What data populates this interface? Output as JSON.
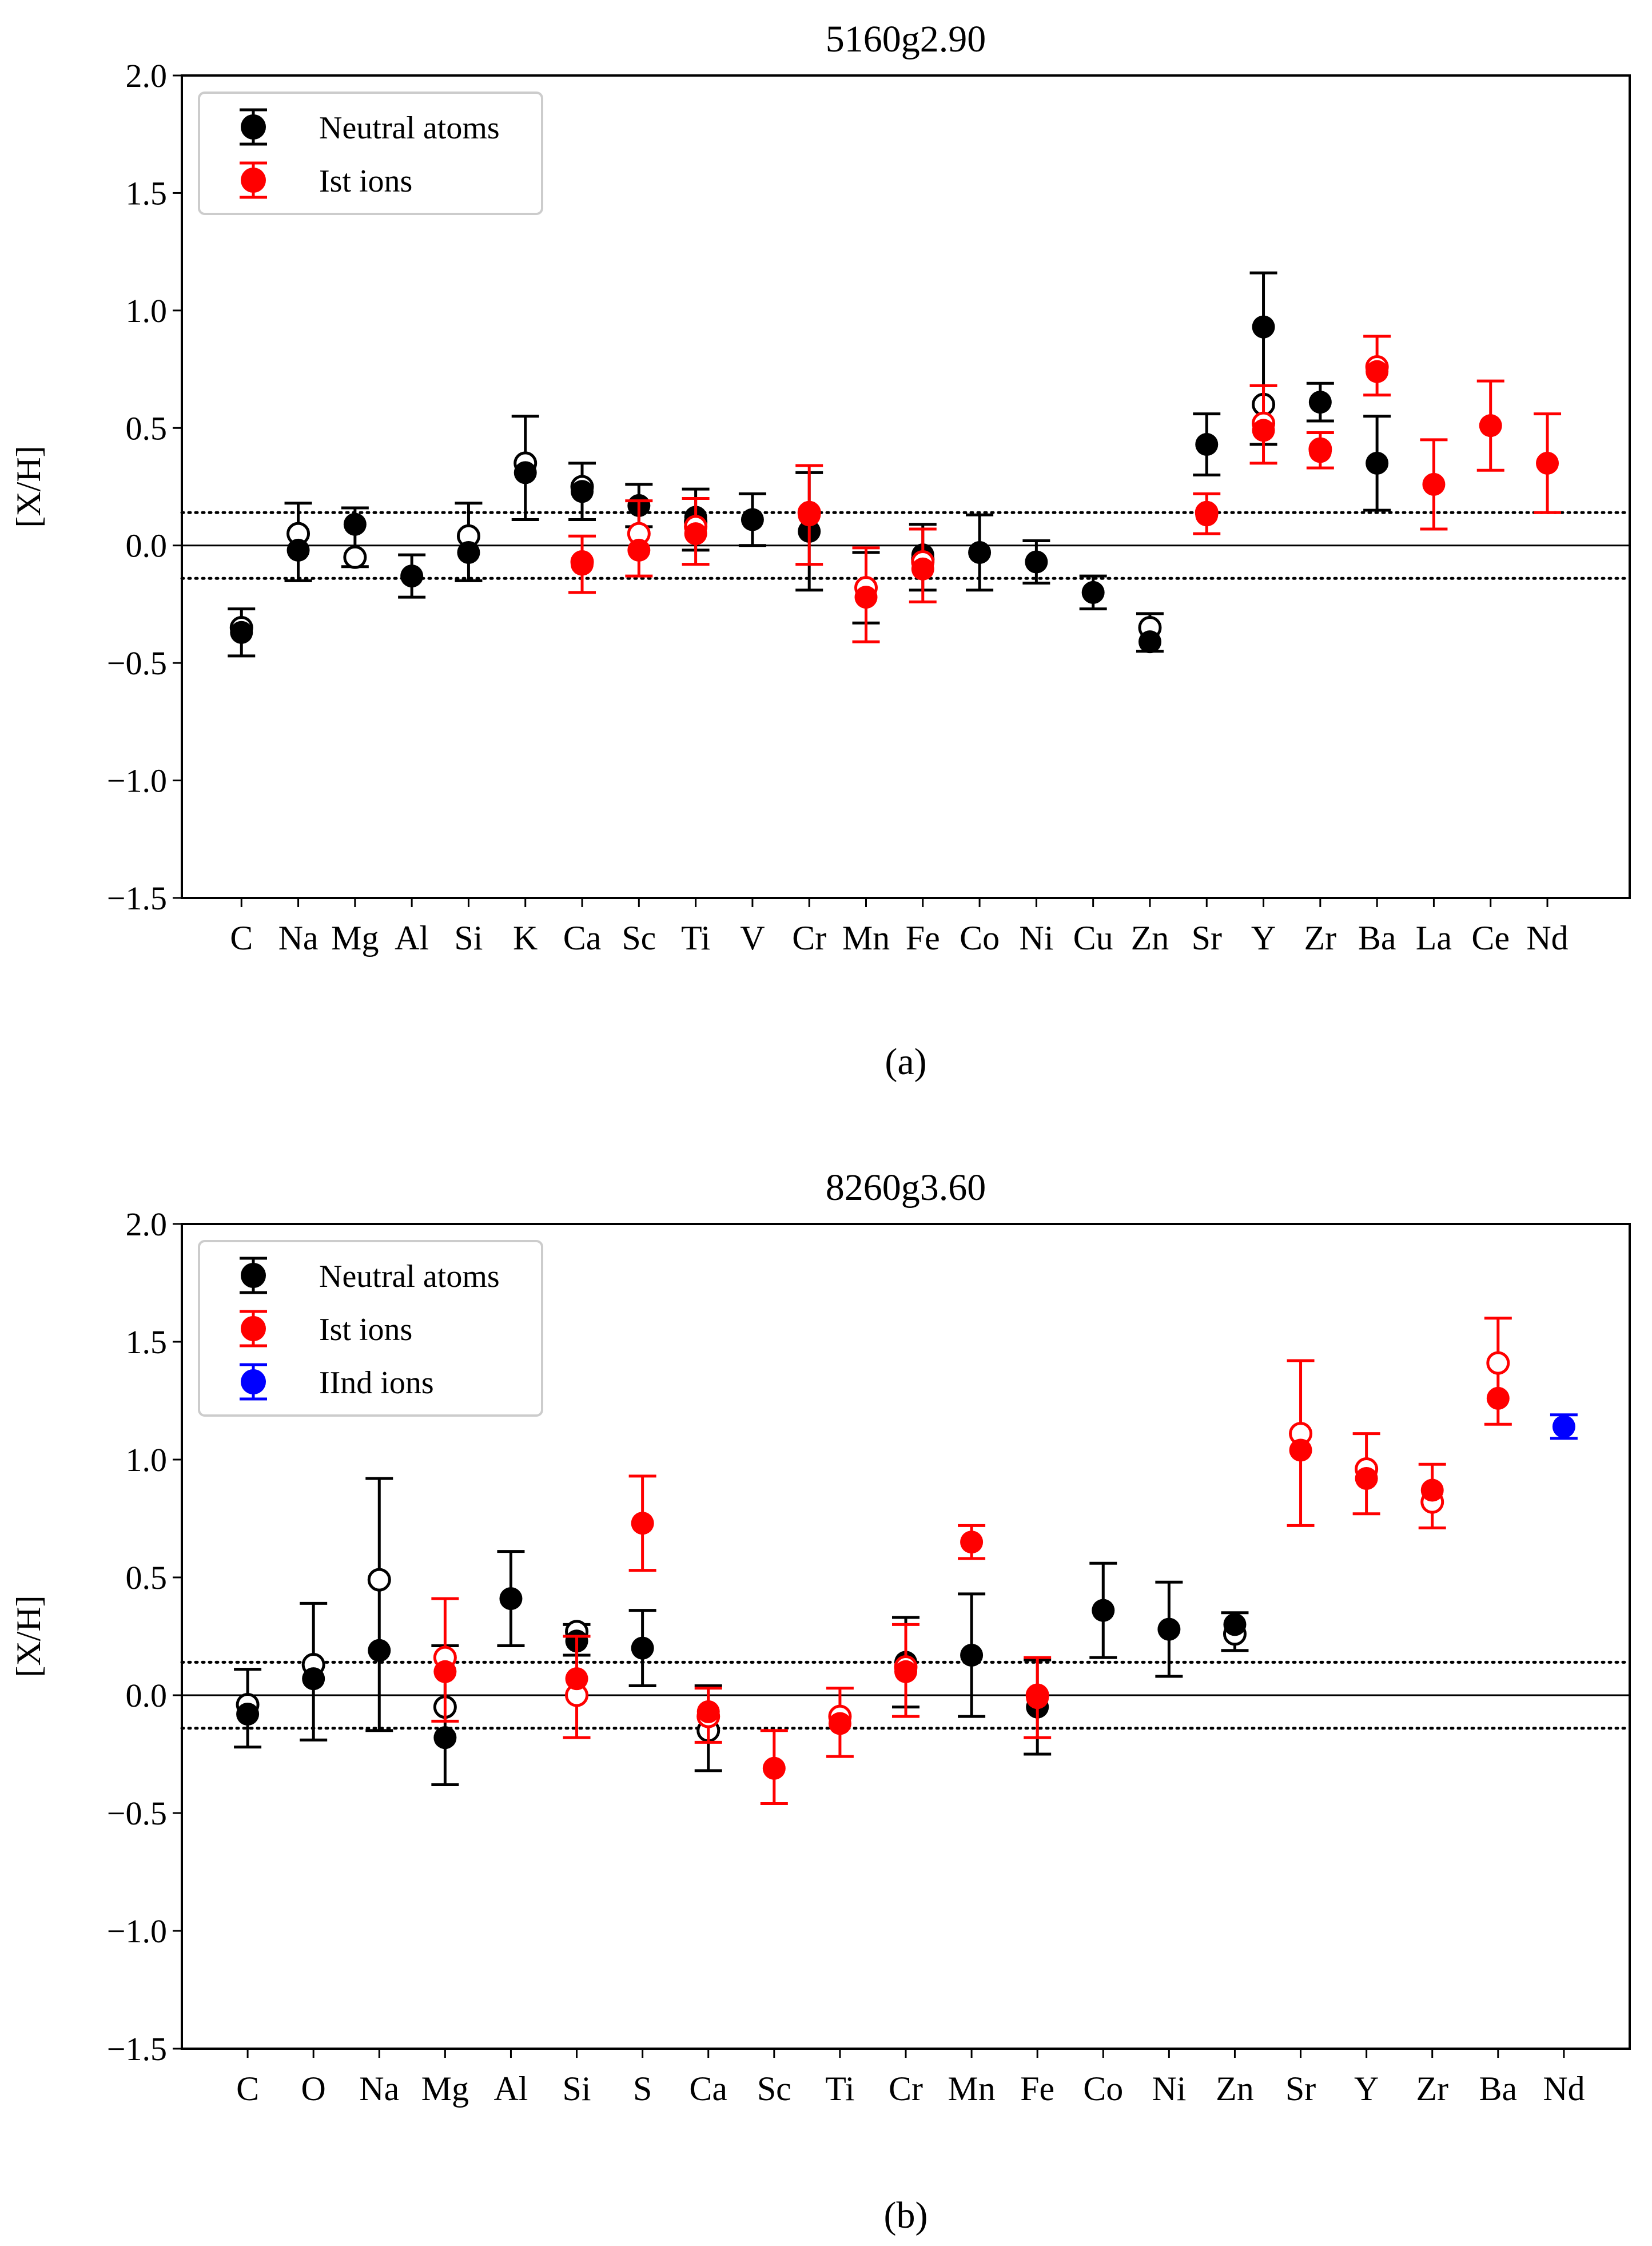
{
  "chart_data": [
    {
      "id": "a",
      "type": "scatter",
      "title": "5160g2.90",
      "ylabel": "[X/H]",
      "xlabel": "",
      "caption": "(a)",
      "ylim": [
        -1.5,
        2.0
      ],
      "yticks": [
        -1.5,
        -1.0,
        -0.5,
        0.0,
        0.5,
        1.0,
        1.5,
        2.0
      ],
      "ytick_labels": [
        "−1.5",
        "−1.0",
        "−0.5",
        "0.0",
        "0.5",
        "1.0",
        "1.5",
        "2.0"
      ],
      "reference_line": 0.0,
      "tolerance_band": [
        -0.14,
        0.14
      ],
      "categories": [
        {
          "label": "C",
          "x": 0.05
        },
        {
          "label": "Na",
          "x": 1.05
        },
        {
          "label": "Mg",
          "x": 2.05
        },
        {
          "label": "Al",
          "x": 3.05
        },
        {
          "label": "Si",
          "x": 4.05
        },
        {
          "label": "K",
          "x": 5.05
        },
        {
          "label": "Ca",
          "x": 6.05
        },
        {
          "label": "Sc",
          "x": 7.05
        },
        {
          "label": "Ti",
          "x": 8.05
        },
        {
          "label": "V",
          "x": 9.05
        },
        {
          "label": "Cr",
          "x": 10.05
        },
        {
          "label": "Mn",
          "x": 11.05
        },
        {
          "label": "Fe",
          "x": 12.05
        },
        {
          "label": "Co",
          "x": 13.05
        },
        {
          "label": "Ni",
          "x": 14.05
        },
        {
          "label": "Cu",
          "x": 15.05
        },
        {
          "label": "Zn",
          "x": 16.05
        },
        {
          "label": "Sr",
          "x": 17.05
        },
        {
          "label": "Y",
          "x": 18.05
        },
        {
          "label": "Zr",
          "x": 19.05
        },
        {
          "label": "Ba",
          "x": 20.05
        },
        {
          "label": "La",
          "x": 21.05
        },
        {
          "label": "Ce",
          "x": 22.05
        },
        {
          "label": "Nd",
          "x": 23.05
        }
      ],
      "xlim": [
        -1,
        24.5
      ],
      "legend": {
        "position": "upper-left",
        "entries": [
          {
            "series": "neutral",
            "label": "Neutral atoms",
            "color": "#000000"
          },
          {
            "series": "ion1",
            "label": "Ist ions",
            "color": "#ff0000"
          }
        ]
      },
      "series": [
        {
          "name": "Neutral atoms",
          "key": "neutral",
          "color": "#000000",
          "points": [
            {
              "x": 0.05,
              "filled": -0.37,
              "open": -0.35,
              "err_low": -0.47,
              "err_high": -0.27
            },
            {
              "x": 1.05,
              "filled": -0.02,
              "open": 0.05,
              "err_low": -0.15,
              "err_high": 0.18
            },
            {
              "x": 2.05,
              "filled": 0.09,
              "open": -0.05,
              "err_low": -0.09,
              "err_high": 0.16
            },
            {
              "x": 3.05,
              "filled": -0.13,
              "open": null,
              "err_low": -0.22,
              "err_high": -0.04
            },
            {
              "x": 4.05,
              "filled": -0.03,
              "open": 0.04,
              "err_low": -0.15,
              "err_high": 0.18
            },
            {
              "x": 5.05,
              "filled": 0.31,
              "open": 0.35,
              "err_low": 0.11,
              "err_high": 0.55
            },
            {
              "x": 6.05,
              "filled": 0.23,
              "open": 0.25,
              "err_low": 0.11,
              "err_high": 0.35
            },
            {
              "x": 7.05,
              "filled": 0.17,
              "open": null,
              "err_low": 0.08,
              "err_high": 0.26
            },
            {
              "x": 8.05,
              "filled": 0.12,
              "open": 0.1,
              "err_low": -0.02,
              "err_high": 0.24
            },
            {
              "x": 9.05,
              "filled": 0.11,
              "open": null,
              "err_low": 0.0,
              "err_high": 0.22
            },
            {
              "x": 10.05,
              "filled": 0.06,
              "open": null,
              "err_low": -0.19,
              "err_high": 0.31
            },
            {
              "x": 11.05,
              "filled": -0.18,
              "open": null,
              "err_low": -0.33,
              "err_high": -0.03
            },
            {
              "x": 12.05,
              "filled": -0.04,
              "open": -0.06,
              "err_low": -0.19,
              "err_high": 0.09
            },
            {
              "x": 13.05,
              "filled": -0.03,
              "open": null,
              "err_low": -0.19,
              "err_high": 0.13
            },
            {
              "x": 14.05,
              "filled": -0.07,
              "open": null,
              "err_low": -0.16,
              "err_high": 0.02
            },
            {
              "x": 15.05,
              "filled": -0.2,
              "open": null,
              "err_low": -0.27,
              "err_high": -0.13
            },
            {
              "x": 16.05,
              "filled": -0.41,
              "open": -0.35,
              "err_low": -0.45,
              "err_high": -0.29
            },
            {
              "x": 17.05,
              "filled": 0.43,
              "open": null,
              "err_low": 0.3,
              "err_high": 0.56
            },
            {
              "x": 18.05,
              "filled": 0.93,
              "open": 0.6,
              "err_low": 0.43,
              "err_high": 1.16
            },
            {
              "x": 19.05,
              "filled": 0.61,
              "open": null,
              "err_low": 0.53,
              "err_high": 0.69
            },
            {
              "x": 20.05,
              "filled": 0.35,
              "open": null,
              "err_low": 0.15,
              "err_high": 0.55
            }
          ]
        },
        {
          "name": "Ist ions",
          "key": "ion1",
          "color": "#ff0000",
          "points": [
            {
              "x": 6.05,
              "filled": -0.08,
              "open": -0.07,
              "err_low": -0.2,
              "err_high": 0.04
            },
            {
              "x": 7.05,
              "filled": -0.02,
              "open": 0.05,
              "err_low": -0.13,
              "err_high": 0.19
            },
            {
              "x": 8.05,
              "filled": 0.05,
              "open": 0.08,
              "err_low": -0.08,
              "err_high": 0.2
            },
            {
              "x": 10.05,
              "filled": 0.13,
              "open": 0.14,
              "err_low": -0.08,
              "err_high": 0.34
            },
            {
              "x": 11.05,
              "filled": -0.22,
              "open": -0.18,
              "err_low": -0.41,
              "err_high": -0.01
            },
            {
              "x": 12.05,
              "filled": -0.1,
              "open": -0.07,
              "err_low": -0.24,
              "err_high": 0.07
            },
            {
              "x": 17.05,
              "filled": 0.13,
              "open": 0.14,
              "err_low": 0.05,
              "err_high": 0.22
            },
            {
              "x": 18.05,
              "filled": 0.49,
              "open": 0.52,
              "err_low": 0.35,
              "err_high": 0.68
            },
            {
              "x": 19.05,
              "filled": 0.4,
              "open": 0.41,
              "err_low": 0.33,
              "err_high": 0.48
            },
            {
              "x": 20.05,
              "filled": 0.74,
              "open": 0.76,
              "err_low": 0.64,
              "err_high": 0.89
            },
            {
              "x": 21.05,
              "filled": 0.26,
              "open": null,
              "err_low": 0.07,
              "err_high": 0.45
            },
            {
              "x": 22.05,
              "filled": 0.51,
              "open": null,
              "err_low": 0.32,
              "err_high": 0.7
            },
            {
              "x": 23.05,
              "filled": 0.35,
              "open": null,
              "err_low": 0.14,
              "err_high": 0.56
            }
          ]
        }
      ]
    },
    {
      "id": "b",
      "type": "scatter",
      "title": "8260g3.60",
      "ylabel": "[X/H]",
      "xlabel": "",
      "caption": "(b)",
      "ylim": [
        -1.5,
        2.0
      ],
      "yticks": [
        -1.5,
        -1.0,
        -0.5,
        0.0,
        0.5,
        1.0,
        1.5,
        2.0
      ],
      "ytick_labels": [
        "−1.5",
        "−1.0",
        "−0.5",
        "0.0",
        "0.5",
        "1.0",
        "1.5",
        "2.0"
      ],
      "reference_line": 0.0,
      "tolerance_band": [
        -0.14,
        0.14
      ],
      "categories": [
        {
          "label": "C",
          "x": 1
        },
        {
          "label": "O",
          "x": 2
        },
        {
          "label": "Na",
          "x": 3
        },
        {
          "label": "Mg",
          "x": 4
        },
        {
          "label": "Al",
          "x": 5
        },
        {
          "label": "Si",
          "x": 6
        },
        {
          "label": "S",
          "x": 7
        },
        {
          "label": "Ca",
          "x": 8
        },
        {
          "label": "Sc",
          "x": 9
        },
        {
          "label": "Ti",
          "x": 10
        },
        {
          "label": "Cr",
          "x": 11
        },
        {
          "label": "Mn",
          "x": 12
        },
        {
          "label": "Fe",
          "x": 13
        },
        {
          "label": "Co",
          "x": 14
        },
        {
          "label": "Ni",
          "x": 15
        },
        {
          "label": "Zn",
          "x": 16
        },
        {
          "label": "Sr",
          "x": 17
        },
        {
          "label": "Y",
          "x": 18
        },
        {
          "label": "Zr",
          "x": 19
        },
        {
          "label": "Ba",
          "x": 20
        },
        {
          "label": "Nd",
          "x": 21
        }
      ],
      "xlim": [
        0,
        22
      ],
      "legend": {
        "position": "upper-left",
        "entries": [
          {
            "series": "neutral",
            "label": "Neutral atoms",
            "color": "#000000"
          },
          {
            "series": "ion1",
            "label": "Ist ions",
            "color": "#ff0000"
          },
          {
            "series": "ion2",
            "label": "IInd ions",
            "color": "#0000ff"
          }
        ]
      },
      "series": [
        {
          "name": "Neutral atoms",
          "key": "neutral",
          "color": "#000000",
          "points": [
            {
              "x": 1,
              "filled": -0.08,
              "open": -0.04,
              "err_low": -0.22,
              "err_high": 0.11
            },
            {
              "x": 2,
              "filled": 0.07,
              "open": 0.13,
              "err_low": -0.19,
              "err_high": 0.39
            },
            {
              "x": 3,
              "filled": 0.19,
              "open": 0.49,
              "err_low": -0.15,
              "err_high": 0.92
            },
            {
              "x": 4,
              "filled": -0.18,
              "open": -0.05,
              "err_low": -0.38,
              "err_high": 0.21
            },
            {
              "x": 5,
              "filled": 0.41,
              "open": null,
              "err_low": 0.21,
              "err_high": 0.61
            },
            {
              "x": 6,
              "filled": 0.23,
              "open": 0.27,
              "err_low": 0.17,
              "err_high": 0.3
            },
            {
              "x": 7,
              "filled": 0.2,
              "open": null,
              "err_low": 0.04,
              "err_high": 0.36
            },
            {
              "x": 8,
              "filled": -0.09,
              "open": -0.15,
              "err_low": -0.32,
              "err_high": 0.04
            },
            {
              "x": 11,
              "filled": 0.14,
              "open": null,
              "err_low": -0.05,
              "err_high": 0.33
            },
            {
              "x": 12,
              "filled": 0.17,
              "open": null,
              "err_low": -0.09,
              "err_high": 0.43
            },
            {
              "x": 13,
              "filled": -0.05,
              "open": null,
              "err_low": -0.25,
              "err_high": 0.15
            },
            {
              "x": 14,
              "filled": 0.36,
              "open": null,
              "err_low": 0.16,
              "err_high": 0.56
            },
            {
              "x": 15,
              "filled": 0.28,
              "open": null,
              "err_low": 0.08,
              "err_high": 0.48
            },
            {
              "x": 16,
              "filled": 0.3,
              "open": 0.26,
              "err_low": 0.19,
              "err_high": 0.35
            }
          ]
        },
        {
          "name": "Ist ions",
          "key": "ion1",
          "color": "#ff0000",
          "points": [
            {
              "x": 4,
              "filled": 0.1,
              "open": 0.16,
              "err_low": -0.11,
              "err_high": 0.41
            },
            {
              "x": 6,
              "filled": 0.07,
              "open": 0.0,
              "err_low": -0.18,
              "err_high": 0.25
            },
            {
              "x": 7,
              "filled": 0.73,
              "open": null,
              "err_low": 0.53,
              "err_high": 0.93
            },
            {
              "x": 8,
              "filled": -0.07,
              "open": -0.09,
              "err_low": -0.2,
              "err_high": 0.03
            },
            {
              "x": 9,
              "filled": -0.31,
              "open": null,
              "err_low": -0.46,
              "err_high": -0.15
            },
            {
              "x": 10,
              "filled": -0.12,
              "open": -0.09,
              "err_low": -0.26,
              "err_high": 0.03
            },
            {
              "x": 11,
              "filled": 0.1,
              "open": 0.12,
              "err_low": -0.09,
              "err_high": 0.3
            },
            {
              "x": 12,
              "filled": 0.65,
              "open": null,
              "err_low": 0.58,
              "err_high": 0.72
            },
            {
              "x": 13,
              "filled": -0.01,
              "open": 0.0,
              "err_low": -0.18,
              "err_high": 0.16
            },
            {
              "x": 17,
              "filled": 1.04,
              "open": 1.11,
              "err_low": 0.72,
              "err_high": 1.42
            },
            {
              "x": 18,
              "filled": 0.92,
              "open": 0.96,
              "err_low": 0.77,
              "err_high": 1.11
            },
            {
              "x": 19,
              "filled": 0.87,
              "open": 0.82,
              "err_low": 0.71,
              "err_high": 0.98
            },
            {
              "x": 20,
              "filled": 1.26,
              "open": 1.41,
              "err_low": 1.15,
              "err_high": 1.6
            }
          ]
        },
        {
          "name": "IInd ions",
          "key": "ion2",
          "color": "#0000ff",
          "points": [
            {
              "x": 21,
              "filled": 1.14,
              "open": null,
              "err_low": 1.09,
              "err_high": 1.19
            }
          ]
        }
      ]
    }
  ]
}
